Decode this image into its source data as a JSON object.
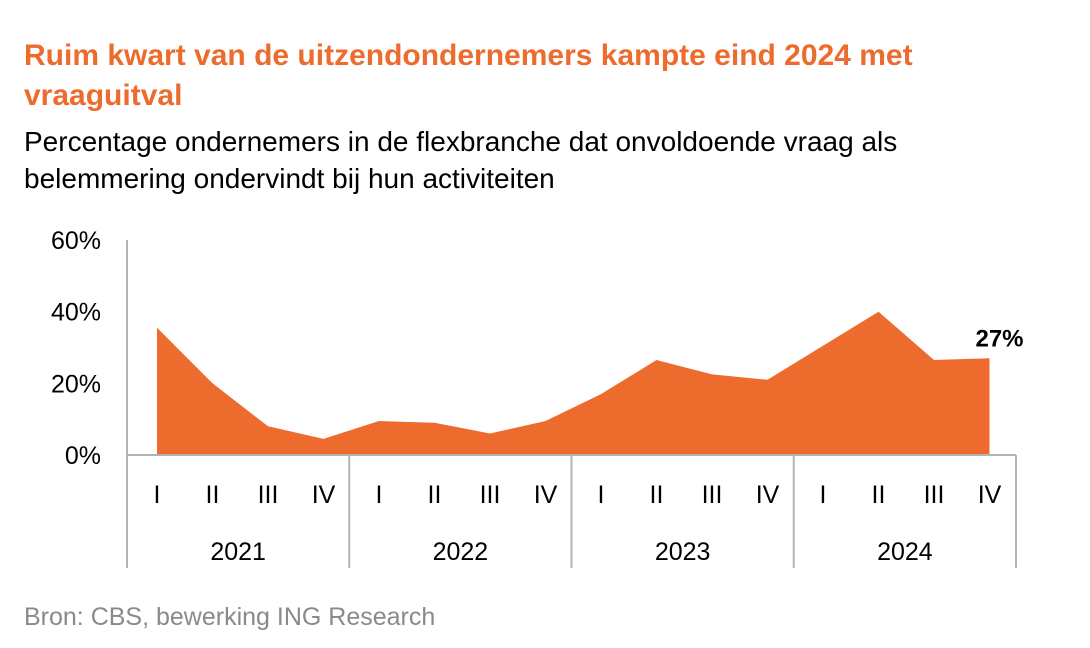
{
  "title": "Ruim kwart van de uitzendondernemers kampte eind 2024 met vraaguitval",
  "subtitle": "Percentage ondernemers in de flexbranche dat onvoldoende vraag als belemmering ondervindt bij hun activiteiten",
  "source": "Bron: CBS, bewerking ING Research",
  "colors": {
    "accent": "#ec6b2d",
    "axis": "#b3b3b3",
    "text": "#000000",
    "source": "#8a8a8a"
  },
  "chart_data": {
    "type": "area",
    "title": "Ruim kwart van de uitzendondernemers kampte eind 2024 met vraaguitval",
    "subtitle": "Percentage ondernemers in de flexbranche dat onvoldoende vraag als belemmering ondervindt bij hun activiteiten",
    "xlabel": "",
    "ylabel": "",
    "ylim": [
      0,
      60
    ],
    "yticks": [
      "0%",
      "20%",
      "40%",
      "60%"
    ],
    "ytick_values": [
      0,
      20,
      40,
      60
    ],
    "grid": false,
    "years": [
      "2021",
      "2022",
      "2023",
      "2024"
    ],
    "quarters": [
      "I",
      "II",
      "III",
      "IV"
    ],
    "categories": [
      "2021 I",
      "2021 II",
      "2021 III",
      "2021 IV",
      "2022 I",
      "2022 II",
      "2022 III",
      "2022 IV",
      "2023 I",
      "2023 II",
      "2023 III",
      "2023 IV",
      "2024 I",
      "2024 II",
      "2024 III",
      "2024 IV"
    ],
    "series": [
      {
        "values": [
          35.5,
          20,
          8,
          4.5,
          9.5,
          9,
          6,
          9.5,
          17,
          26.5,
          22.5,
          21,
          30.5,
          40,
          26.5,
          27
        ],
        "color": "#ec6b2d"
      }
    ],
    "annotations": [
      {
        "category": "2024 IV",
        "text": "27%"
      }
    ]
  }
}
